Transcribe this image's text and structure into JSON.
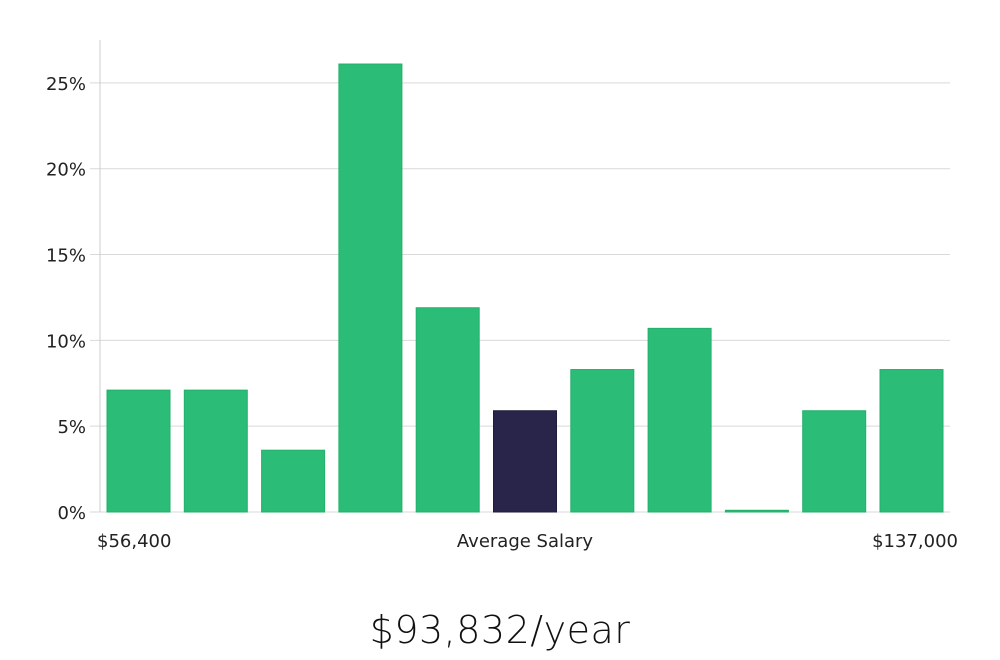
{
  "colors": {
    "bar": "#2bbd77",
    "bar_border": "#22b06a",
    "highlight": "#29254a",
    "grid": "#d9d9d9",
    "axis": "#cccccc"
  },
  "chart_data": {
    "type": "bar",
    "title": "",
    "xlabel": "Average Salary",
    "x_min_label": "$56,400",
    "x_max_label": "$137,000",
    "ylim": [
      0,
      27.5
    ],
    "yticks": [
      0,
      5,
      10,
      15,
      20,
      25
    ],
    "ytick_labels": [
      "0%",
      "5%",
      "10%",
      "15%",
      "20%",
      "25%"
    ],
    "values": [
      7.1,
      7.1,
      3.6,
      26.1,
      11.9,
      5.9,
      8.3,
      10.7,
      0.1,
      5.9,
      8.3
    ],
    "highlight_index": 5,
    "grid": true
  },
  "headline": "$93,832/year"
}
